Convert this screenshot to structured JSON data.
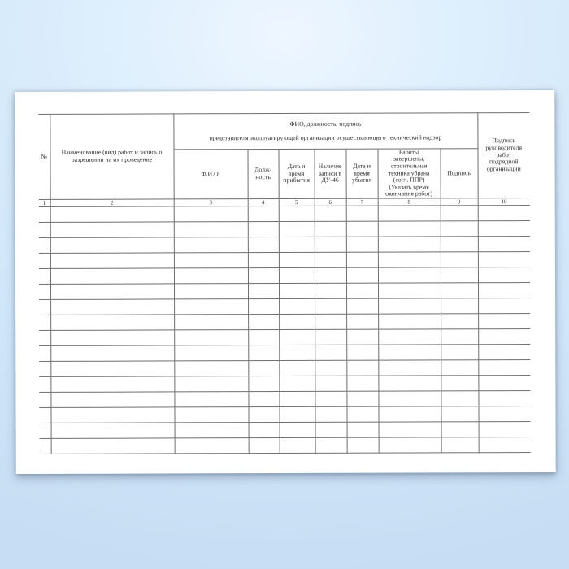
{
  "page": {
    "background_color": "#d6eafb",
    "paper_color": "#ffffff",
    "line_color": "#6f6f6f",
    "text_color": "#2f2f2f"
  },
  "table": {
    "span_header": {
      "line1": "ФИО, должность, подпись",
      "line2": "представителя эксплуатирующей организации осуществляющего технический надзор"
    },
    "columns": [
      {
        "num": "1",
        "label": "№"
      },
      {
        "num": "2",
        "label": "Наименование (вид) работ и запись о\nразрешении на их проведение"
      },
      {
        "num": "3",
        "label": "Ф.И.О."
      },
      {
        "num": "4",
        "label": "Долж-\nность"
      },
      {
        "num": "5",
        "label": "Дата и\nвремя\nприбытия"
      },
      {
        "num": "6",
        "label": "Наличие\nзаписи в\nДУ-46"
      },
      {
        "num": "7",
        "label": "Дата и\nвремя\nубытия"
      },
      {
        "num": "8",
        "label": "Работы\nзавершены,\nстроительная\nтехника убрана\n(согл. ППР)\n(Указать время\nокончания работ)"
      },
      {
        "num": "9",
        "label": "Подпись"
      },
      {
        "num": "10",
        "label": "Подпись\nруководителя\nработ\nподрядной\nорганизации"
      }
    ],
    "empty_rows": 16
  }
}
